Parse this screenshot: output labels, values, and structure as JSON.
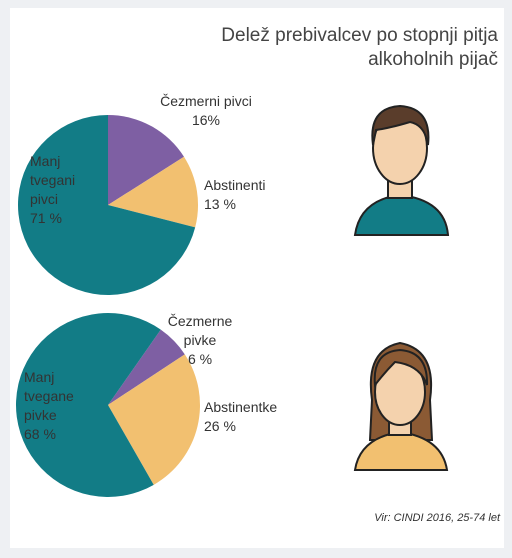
{
  "title": "Delež prebivalcev po stopnji pitja alkoholnih pijač",
  "source": "Vir: CINDI 2016, 25-74 let",
  "chart_data": [
    {
      "type": "pie",
      "categories": [
        "Čezmerni pivci",
        "Abstinenti",
        "Manj tvegani pivci"
      ],
      "values": [
        16,
        13,
        71
      ],
      "value_labels": [
        "16%",
        "13 %",
        "71 %"
      ],
      "colors": [
        "#7e5fa3",
        "#f2c070",
        "#127c86"
      ]
    },
    {
      "type": "pie",
      "categories": [
        "Čezmerne pivke",
        "Abstinentke",
        "Manj tvegane pivke"
      ],
      "values": [
        6,
        26,
        68
      ],
      "value_labels": [
        "6 %",
        "26 %",
        "68 %"
      ],
      "colors": [
        "#7e5fa3",
        "#f2c070",
        "#127c86"
      ]
    }
  ]
}
